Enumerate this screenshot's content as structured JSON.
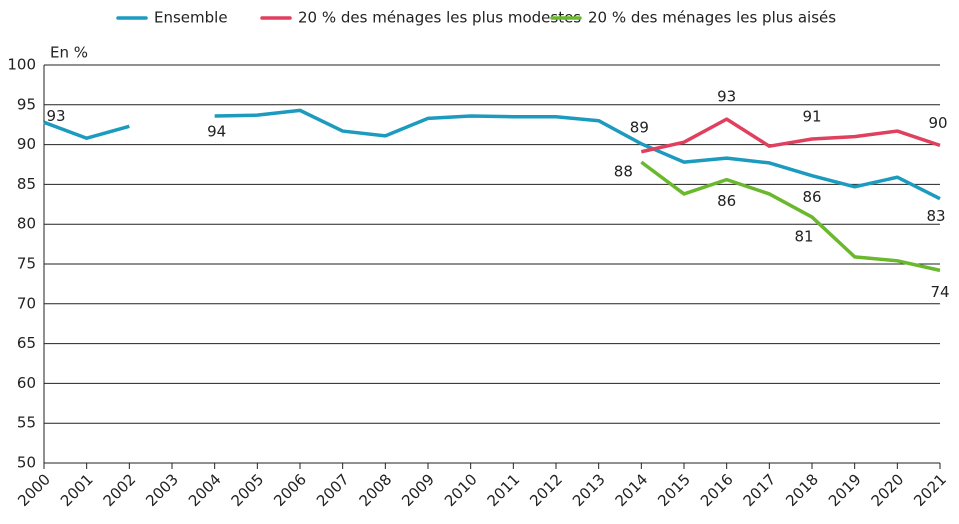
{
  "chart_data": {
    "type": "line",
    "y_label": "En %",
    "categories": [
      "2000",
      "2001",
      "2002",
      "2003",
      "2004",
      "2005",
      "2006",
      "2007",
      "2008",
      "2009",
      "2010",
      "2011",
      "2012",
      "2013",
      "2014",
      "2015",
      "2016",
      "2017",
      "2018",
      "2019",
      "2020",
      "2021"
    ],
    "series": [
      {
        "name": "Ensemble",
        "color": "#1d9bbf",
        "values": [
          92.8,
          90.8,
          92.3,
          null,
          93.6,
          93.7,
          94.3,
          91.7,
          91.1,
          93.3,
          93.6,
          93.5,
          93.5,
          93.0,
          90.1,
          87.8,
          88.3,
          87.7,
          86.1,
          84.7,
          85.9,
          83.2
        ],
        "value_labels": [
          "93",
          null,
          null,
          null,
          "94",
          null,
          null,
          null,
          null,
          null,
          null,
          null,
          null,
          null,
          null,
          null,
          null,
          null,
          "86",
          null,
          null,
          "83"
        ]
      },
      {
        "name": "20 % des ménages les plus modestes",
        "color": "#e0405e",
        "values": [
          null,
          null,
          null,
          null,
          null,
          null,
          null,
          null,
          null,
          null,
          null,
          null,
          null,
          null,
          89.1,
          90.3,
          93.2,
          89.8,
          90.7,
          91.0,
          91.7,
          89.9
        ],
        "value_labels": [
          null,
          null,
          null,
          null,
          null,
          null,
          null,
          null,
          null,
          null,
          null,
          null,
          null,
          null,
          "89",
          null,
          "93",
          null,
          "91",
          null,
          null,
          "90"
        ]
      },
      {
        "name": "20 % des ménages les plus aisés",
        "color": "#6ab82e",
        "values": [
          null,
          null,
          null,
          null,
          null,
          null,
          null,
          null,
          null,
          null,
          null,
          null,
          null,
          null,
          87.8,
          83.8,
          85.6,
          83.8,
          80.9,
          75.9,
          75.4,
          74.2
        ],
        "value_labels": [
          null,
          null,
          null,
          null,
          null,
          null,
          null,
          null,
          null,
          null,
          null,
          null,
          null,
          null,
          "88",
          null,
          "86",
          null,
          "81",
          null,
          null,
          "74"
        ]
      }
    ],
    "ylim": [
      50,
      100
    ],
    "yticks": [
      50,
      55,
      60,
      65,
      70,
      75,
      80,
      85,
      90,
      95,
      100
    ],
    "grid": true,
    "legend": "top"
  }
}
